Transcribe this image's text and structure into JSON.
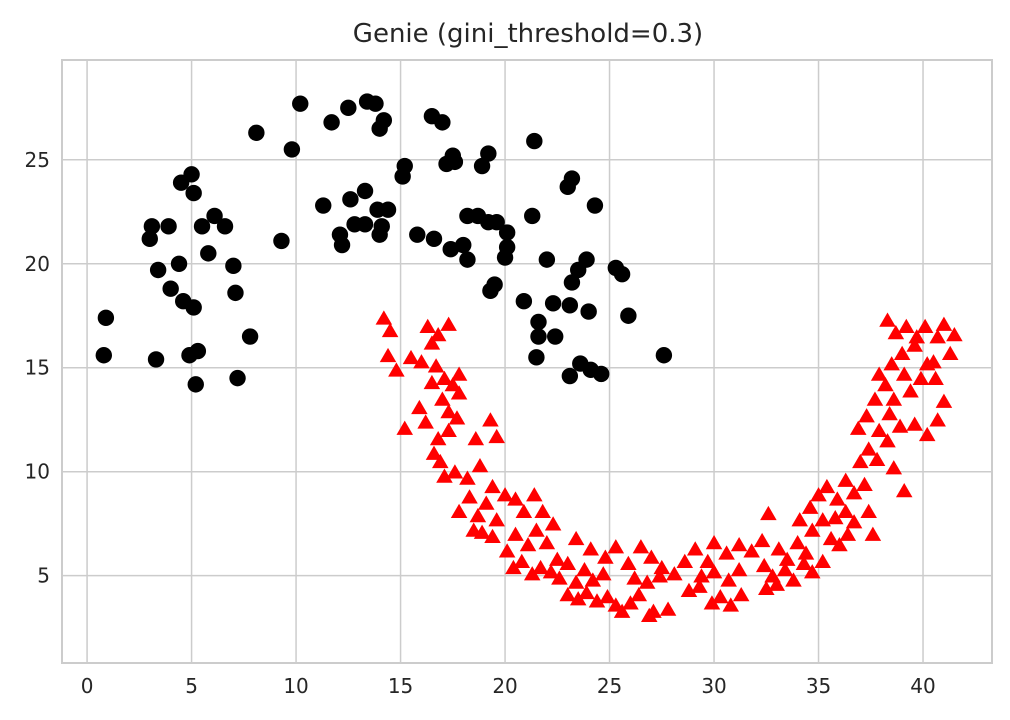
{
  "chart_data": {
    "type": "scatter",
    "title": "Genie (gini_threshold=0.3)",
    "xlabel": "",
    "ylabel": "",
    "xlim": [
      -1.2,
      43.3
    ],
    "ylim": [
      0.8,
      29.8
    ],
    "xticks": [
      0,
      5,
      10,
      15,
      20,
      25,
      30,
      35,
      40
    ],
    "yticks": [
      5,
      10,
      15,
      20,
      25
    ],
    "grid": true,
    "legend": "none",
    "series": [
      {
        "marker": "circle",
        "color": "#000000",
        "points": [
          [
            0.8,
            15.6
          ],
          [
            0.9,
            17.4
          ],
          [
            3.0,
            21.2
          ],
          [
            3.1,
            21.8
          ],
          [
            3.3,
            15.4
          ],
          [
            3.4,
            19.7
          ],
          [
            3.9,
            21.8
          ],
          [
            4.0,
            18.8
          ],
          [
            4.4,
            20.0
          ],
          [
            4.5,
            23.9
          ],
          [
            4.6,
            18.2
          ],
          [
            4.9,
            15.6
          ],
          [
            5.0,
            24.3
          ],
          [
            5.1,
            23.4
          ],
          [
            5.1,
            17.9
          ],
          [
            5.2,
            14.2
          ],
          [
            5.3,
            15.8
          ],
          [
            5.5,
            21.8
          ],
          [
            5.8,
            20.5
          ],
          [
            6.1,
            22.3
          ],
          [
            6.6,
            21.8
          ],
          [
            7.0,
            19.9
          ],
          [
            7.1,
            18.6
          ],
          [
            7.2,
            14.5
          ],
          [
            7.8,
            16.5
          ],
          [
            8.1,
            26.3
          ],
          [
            9.3,
            21.1
          ],
          [
            9.8,
            25.5
          ],
          [
            10.2,
            27.7
          ],
          [
            11.3,
            22.8
          ],
          [
            11.7,
            26.8
          ],
          [
            12.1,
            21.4
          ],
          [
            12.2,
            20.9
          ],
          [
            12.5,
            27.5
          ],
          [
            12.6,
            23.1
          ],
          [
            12.8,
            21.9
          ],
          [
            13.3,
            23.5
          ],
          [
            13.3,
            21.9
          ],
          [
            13.4,
            27.8
          ],
          [
            13.8,
            27.7
          ],
          [
            13.9,
            22.6
          ],
          [
            14.0,
            21.4
          ],
          [
            14.1,
            21.8
          ],
          [
            14.0,
            26.5
          ],
          [
            14.2,
            26.9
          ],
          [
            14.4,
            22.6
          ],
          [
            15.1,
            24.2
          ],
          [
            15.2,
            24.7
          ],
          [
            15.8,
            21.4
          ],
          [
            16.5,
            27.1
          ],
          [
            16.6,
            21.2
          ],
          [
            17.0,
            26.8
          ],
          [
            17.2,
            24.8
          ],
          [
            17.5,
            25.2
          ],
          [
            17.6,
            24.9
          ],
          [
            17.4,
            20.7
          ],
          [
            18.0,
            20.9
          ],
          [
            18.2,
            20.2
          ],
          [
            18.2,
            22.3
          ],
          [
            18.7,
            22.3
          ],
          [
            18.9,
            24.7
          ],
          [
            19.2,
            22.0
          ],
          [
            19.2,
            25.3
          ],
          [
            19.3,
            18.7
          ],
          [
            19.5,
            19.0
          ],
          [
            19.6,
            22.0
          ],
          [
            20.0,
            20.3
          ],
          [
            20.1,
            21.5
          ],
          [
            20.1,
            20.8
          ],
          [
            20.9,
            18.2
          ],
          [
            21.3,
            22.3
          ],
          [
            21.4,
            25.9
          ],
          [
            21.5,
            15.5
          ],
          [
            21.6,
            16.5
          ],
          [
            21.6,
            17.2
          ],
          [
            22.0,
            20.2
          ],
          [
            22.3,
            18.1
          ],
          [
            22.4,
            16.5
          ],
          [
            23.0,
            23.7
          ],
          [
            23.1,
            18.0
          ],
          [
            23.1,
            14.6
          ],
          [
            23.2,
            24.1
          ],
          [
            23.2,
            19.1
          ],
          [
            23.5,
            19.7
          ],
          [
            23.6,
            15.2
          ],
          [
            23.9,
            20.2
          ],
          [
            24.0,
            17.7
          ],
          [
            24.1,
            14.9
          ],
          [
            24.3,
            22.8
          ],
          [
            24.6,
            14.7
          ],
          [
            25.3,
            19.8
          ],
          [
            25.6,
            19.5
          ],
          [
            25.9,
            17.5
          ],
          [
            27.6,
            15.6
          ]
        ]
      },
      {
        "marker": "triangle",
        "color": "#ff0000",
        "points": [
          [
            14.2,
            17.3
          ],
          [
            14.5,
            16.7
          ],
          [
            14.4,
            15.5
          ],
          [
            14.8,
            14.8
          ],
          [
            15.5,
            15.4
          ],
          [
            15.2,
            12.0
          ],
          [
            15.9,
            13.0
          ],
          [
            16.0,
            15.2
          ],
          [
            16.3,
            16.9
          ],
          [
            16.5,
            16.1
          ],
          [
            16.8,
            16.5
          ],
          [
            17.3,
            17.0
          ],
          [
            16.7,
            15.0
          ],
          [
            17.1,
            14.4
          ],
          [
            17.5,
            14.1
          ],
          [
            17.8,
            14.6
          ],
          [
            16.5,
            14.2
          ],
          [
            17.0,
            13.4
          ],
          [
            17.3,
            12.8
          ],
          [
            17.8,
            13.7
          ],
          [
            16.2,
            12.3
          ],
          [
            16.8,
            11.5
          ],
          [
            17.3,
            11.9
          ],
          [
            17.7,
            12.5
          ],
          [
            16.6,
            10.8
          ],
          [
            16.9,
            10.4
          ],
          [
            17.1,
            9.7
          ],
          [
            17.6,
            9.9
          ],
          [
            18.2,
            9.6
          ],
          [
            18.8,
            10.2
          ],
          [
            19.4,
            9.2
          ],
          [
            18.6,
            11.5
          ],
          [
            19.3,
            12.4
          ],
          [
            19.6,
            11.6
          ],
          [
            17.8,
            8.0
          ],
          [
            18.3,
            8.7
          ],
          [
            18.7,
            7.8
          ],
          [
            19.1,
            8.4
          ],
          [
            19.6,
            7.6
          ],
          [
            20.0,
            8.8
          ],
          [
            20.5,
            8.6
          ],
          [
            20.9,
            8.0
          ],
          [
            21.4,
            8.8
          ],
          [
            21.8,
            8.0
          ],
          [
            22.3,
            7.4
          ],
          [
            18.5,
            7.1
          ],
          [
            18.9,
            7.0
          ],
          [
            19.4,
            6.8
          ],
          [
            20.1,
            6.1
          ],
          [
            20.5,
            6.9
          ],
          [
            21.1,
            6.4
          ],
          [
            21.5,
            7.1
          ],
          [
            22.0,
            6.5
          ],
          [
            22.5,
            5.7
          ],
          [
            20.4,
            5.3
          ],
          [
            20.8,
            5.6
          ],
          [
            21.3,
            5.0
          ],
          [
            21.7,
            5.3
          ],
          [
            22.2,
            5.1
          ],
          [
            22.6,
            4.8
          ],
          [
            23.0,
            5.5
          ],
          [
            23.4,
            4.6
          ],
          [
            23.8,
            5.2
          ],
          [
            24.2,
            4.7
          ],
          [
            24.7,
            5.0
          ],
          [
            23.0,
            4.0
          ],
          [
            23.5,
            3.8
          ],
          [
            23.9,
            4.1
          ],
          [
            24.4,
            3.7
          ],
          [
            24.9,
            3.9
          ],
          [
            25.3,
            3.5
          ],
          [
            25.6,
            3.2
          ],
          [
            26.0,
            3.6
          ],
          [
            26.4,
            4.0
          ],
          [
            26.9,
            3.0
          ],
          [
            27.1,
            3.2
          ],
          [
            27.8,
            3.3
          ],
          [
            23.4,
            6.7
          ],
          [
            24.1,
            6.2
          ],
          [
            24.8,
            5.8
          ],
          [
            25.3,
            6.3
          ],
          [
            25.9,
            5.5
          ],
          [
            26.5,
            6.3
          ],
          [
            27.0,
            5.8
          ],
          [
            27.5,
            5.3
          ],
          [
            26.2,
            4.8
          ],
          [
            26.8,
            4.6
          ],
          [
            27.4,
            4.9
          ],
          [
            28.1,
            5.0
          ],
          [
            28.6,
            5.6
          ],
          [
            29.1,
            6.2
          ],
          [
            29.7,
            5.6
          ],
          [
            30.0,
            6.5
          ],
          [
            30.6,
            6.0
          ],
          [
            31.2,
            6.4
          ],
          [
            28.8,
            4.2
          ],
          [
            29.3,
            4.4
          ],
          [
            29.9,
            3.6
          ],
          [
            30.3,
            3.9
          ],
          [
            30.8,
            3.5
          ],
          [
            31.3,
            4.0
          ],
          [
            29.4,
            4.9
          ],
          [
            30.0,
            5.1
          ],
          [
            30.7,
            4.7
          ],
          [
            31.2,
            5.2
          ],
          [
            31.8,
            6.1
          ],
          [
            32.3,
            6.6
          ],
          [
            32.6,
            7.9
          ],
          [
            33.1,
            6.2
          ],
          [
            33.5,
            5.7
          ],
          [
            34.0,
            6.5
          ],
          [
            34.4,
            6.0
          ],
          [
            34.7,
            7.1
          ],
          [
            35.2,
            7.6
          ],
          [
            35.6,
            6.7
          ],
          [
            32.4,
            5.4
          ],
          [
            32.8,
            4.9
          ],
          [
            33.4,
            5.2
          ],
          [
            33.8,
            4.7
          ],
          [
            34.3,
            5.5
          ],
          [
            34.7,
            5.1
          ],
          [
            35.2,
            5.6
          ],
          [
            32.5,
            4.3
          ],
          [
            33.0,
            4.5
          ],
          [
            34.1,
            7.6
          ],
          [
            34.6,
            8.2
          ],
          [
            35.0,
            8.8
          ],
          [
            35.4,
            9.2
          ],
          [
            35.9,
            8.6
          ],
          [
            36.3,
            9.5
          ],
          [
            36.7,
            8.9
          ],
          [
            37.2,
            9.3
          ],
          [
            35.8,
            7.7
          ],
          [
            36.3,
            8.0
          ],
          [
            36.7,
            7.5
          ],
          [
            37.4,
            8.0
          ],
          [
            36.0,
            6.4
          ],
          [
            36.4,
            6.9
          ],
          [
            37.6,
            6.9
          ],
          [
            37.0,
            10.4
          ],
          [
            37.4,
            11.0
          ],
          [
            37.8,
            10.5
          ],
          [
            38.3,
            11.4
          ],
          [
            38.6,
            10.1
          ],
          [
            39.1,
            9.0
          ],
          [
            36.9,
            12.0
          ],
          [
            37.3,
            12.6
          ],
          [
            37.9,
            11.9
          ],
          [
            38.4,
            12.7
          ],
          [
            38.9,
            12.1
          ],
          [
            37.7,
            13.4
          ],
          [
            38.2,
            14.1
          ],
          [
            38.6,
            13.4
          ],
          [
            39.1,
            14.6
          ],
          [
            39.4,
            13.8
          ],
          [
            39.9,
            14.4
          ],
          [
            37.9,
            14.6
          ],
          [
            38.5,
            15.1
          ],
          [
            39.0,
            15.6
          ],
          [
            39.6,
            16.0
          ],
          [
            40.2,
            15.1
          ],
          [
            40.6,
            14.4
          ],
          [
            38.3,
            17.2
          ],
          [
            38.7,
            16.6
          ],
          [
            39.2,
            16.9
          ],
          [
            39.7,
            16.4
          ],
          [
            40.1,
            16.9
          ],
          [
            40.7,
            16.4
          ],
          [
            41.0,
            17.0
          ],
          [
            41.3,
            15.6
          ],
          [
            41.5,
            16.5
          ],
          [
            39.6,
            12.2
          ],
          [
            40.2,
            11.7
          ],
          [
            40.7,
            12.4
          ],
          [
            41.0,
            13.3
          ],
          [
            40.5,
            15.2
          ]
        ]
      }
    ]
  }
}
